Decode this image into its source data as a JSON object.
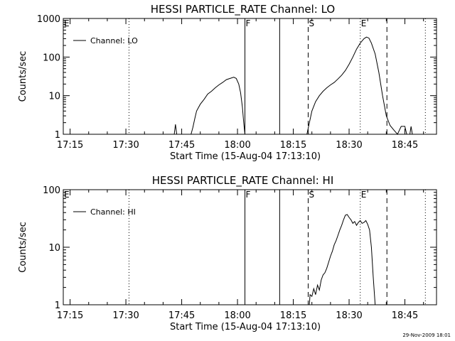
{
  "footer_timestamp": "29-Nov-2009 18:01",
  "chart_data": [
    {
      "type": "line",
      "title": "HESSI PARTICLE_RATE Channel: LO",
      "xlabel": "Start Time (15-Aug-04 17:13:10)",
      "ylabel": "Counts/sec",
      "y_scale": "log",
      "xlim": [
        "17:13:10",
        "18:53:30"
      ],
      "ylim": [
        1,
        1000
      ],
      "x_ticks": [
        "17:15",
        "17:30",
        "17:45",
        "18:00",
        "18:15",
        "18:30",
        "18:45"
      ],
      "y_ticks": [
        {
          "value": 1,
          "label": "1"
        },
        {
          "value": 10,
          "label": "10"
        },
        {
          "value": 100,
          "label": "100"
        },
        {
          "value": 1000,
          "label": "1000"
        }
      ],
      "legend": {
        "position": "top-left",
        "label": "Channel: LO"
      },
      "markers": [
        {
          "label": "E",
          "time": "17:13:10",
          "style": "none"
        },
        {
          "label": "",
          "time": "17:30:50",
          "style": "dotted"
        },
        {
          "label": "F",
          "time": "18:02:00",
          "style": "solid"
        },
        {
          "label": "",
          "time": "18:11:20",
          "style": "solid"
        },
        {
          "label": "S",
          "time": "18:19:00",
          "style": "dashed"
        },
        {
          "label": "E",
          "time": "18:33:00",
          "style": "dotted"
        },
        {
          "label": "",
          "time": "18:40:10",
          "style": "dashed"
        },
        {
          "label": "",
          "time": "18:50:30",
          "style": "dotted"
        }
      ],
      "series": [
        {
          "name": "Channel: LO",
          "points": [
            [
              "17:43:00",
              1
            ],
            [
              "17:43:20",
              1.8
            ],
            [
              "17:43:40",
              1
            ],
            [
              "17:47:30",
              1
            ],
            [
              "17:48:00",
              1.5
            ],
            [
              "17:48:30",
              2.5
            ],
            [
              "17:49:00",
              4
            ],
            [
              "17:50:00",
              6
            ],
            [
              "17:51:00",
              8
            ],
            [
              "17:52:00",
              11
            ],
            [
              "17:53:00",
              13
            ],
            [
              "17:54:00",
              16
            ],
            [
              "17:55:00",
              19
            ],
            [
              "17:56:00",
              22
            ],
            [
              "17:57:00",
              26
            ],
            [
              "17:58:00",
              28
            ],
            [
              "17:59:00",
              30
            ],
            [
              "17:59:40",
              28
            ],
            [
              "18:00:20",
              20
            ],
            [
              "18:00:50",
              12
            ],
            [
              "18:01:20",
              5
            ],
            [
              "18:01:40",
              2
            ],
            [
              "18:02:00",
              1
            ],
            [
              "18:18:40",
              1
            ],
            [
              "18:19:20",
              2
            ],
            [
              "18:20:00",
              4
            ],
            [
              "18:21:00",
              7
            ],
            [
              "18:22:00",
              10
            ],
            [
              "18:23:00",
              13
            ],
            [
              "18:24:00",
              16
            ],
            [
              "18:25:00",
              19
            ],
            [
              "18:26:00",
              22
            ],
            [
              "18:27:00",
              27
            ],
            [
              "18:28:00",
              34
            ],
            [
              "18:29:00",
              45
            ],
            [
              "18:30:00",
              65
            ],
            [
              "18:31:00",
              100
            ],
            [
              "18:32:00",
              160
            ],
            [
              "18:33:00",
              230
            ],
            [
              "18:34:00",
              300
            ],
            [
              "18:34:40",
              330
            ],
            [
              "18:35:20",
              310
            ],
            [
              "18:36:00",
              230
            ],
            [
              "18:37:00",
              120
            ],
            [
              "18:38:00",
              40
            ],
            [
              "18:39:00",
              10
            ],
            [
              "18:40:00",
              3
            ],
            [
              "18:41:00",
              1.7
            ],
            [
              "18:42:00",
              1.3
            ],
            [
              "18:43:00",
              1
            ],
            [
              "18:44:00",
              1.6
            ],
            [
              "18:45:00",
              1.6
            ],
            [
              "18:45:30",
              1
            ],
            [
              "18:46:20",
              1
            ],
            [
              "18:46:40",
              1.6
            ],
            [
              "18:47:00",
              1
            ]
          ]
        }
      ]
    },
    {
      "type": "line",
      "title": "HESSI PARTICLE_RATE Channel: HI",
      "xlabel": "Start Time (15-Aug-04 17:13:10)",
      "ylabel": "Counts/sec",
      "y_scale": "log",
      "xlim": [
        "17:13:10",
        "18:53:30"
      ],
      "ylim": [
        1,
        100
      ],
      "x_ticks": [
        "17:15",
        "17:30",
        "17:45",
        "18:00",
        "18:15",
        "18:30",
        "18:45"
      ],
      "y_ticks": [
        {
          "value": 1,
          "label": "1"
        },
        {
          "value": 10,
          "label": "10"
        },
        {
          "value": 100,
          "label": "100"
        }
      ],
      "legend": {
        "position": "top-left",
        "label": "Channel: HI"
      },
      "markers": [
        {
          "label": "E",
          "time": "17:13:10",
          "style": "none"
        },
        {
          "label": "",
          "time": "17:30:50",
          "style": "dotted"
        },
        {
          "label": "F",
          "time": "18:02:00",
          "style": "solid"
        },
        {
          "label": "",
          "time": "18:11:20",
          "style": "solid"
        },
        {
          "label": "S",
          "time": "18:19:00",
          "style": "dashed"
        },
        {
          "label": "E",
          "time": "18:33:00",
          "style": "dotted"
        },
        {
          "label": "",
          "time": "18:40:10",
          "style": "dashed"
        },
        {
          "label": "",
          "time": "18:50:30",
          "style": "dotted"
        }
      ],
      "series": [
        {
          "name": "Channel: HI",
          "points": [
            [
              "18:19:20",
              1
            ],
            [
              "18:19:30",
              1.5
            ],
            [
              "18:20:00",
              1.4
            ],
            [
              "18:20:30",
              1.9
            ],
            [
              "18:21:00",
              1.5
            ],
            [
              "18:21:30",
              2.2
            ],
            [
              "18:22:00",
              1.8
            ],
            [
              "18:22:30",
              2.7
            ],
            [
              "18:23:00",
              3.3
            ],
            [
              "18:23:30",
              3.6
            ],
            [
              "18:24:00",
              4.3
            ],
            [
              "18:24:30",
              5.5
            ],
            [
              "18:25:00",
              7
            ],
            [
              "18:25:30",
              8.5
            ],
            [
              "18:26:00",
              11
            ],
            [
              "18:26:30",
              13
            ],
            [
              "18:27:00",
              16
            ],
            [
              "18:27:30",
              20
            ],
            [
              "18:28:00",
              24
            ],
            [
              "18:28:30",
              30
            ],
            [
              "18:29:00",
              36
            ],
            [
              "18:29:30",
              37
            ],
            [
              "18:30:00",
              33
            ],
            [
              "18:30:30",
              30
            ],
            [
              "18:31:00",
              26
            ],
            [
              "18:31:30",
              28
            ],
            [
              "18:32:00",
              24
            ],
            [
              "18:32:30",
              27
            ],
            [
              "18:33:00",
              29
            ],
            [
              "18:33:30",
              26
            ],
            [
              "18:34:00",
              27
            ],
            [
              "18:34:30",
              29
            ],
            [
              "18:35:00",
              25
            ],
            [
              "18:35:30",
              20
            ],
            [
              "18:36:00",
              10
            ],
            [
              "18:36:30",
              3
            ],
            [
              "18:37:00",
              1
            ]
          ]
        }
      ]
    }
  ]
}
